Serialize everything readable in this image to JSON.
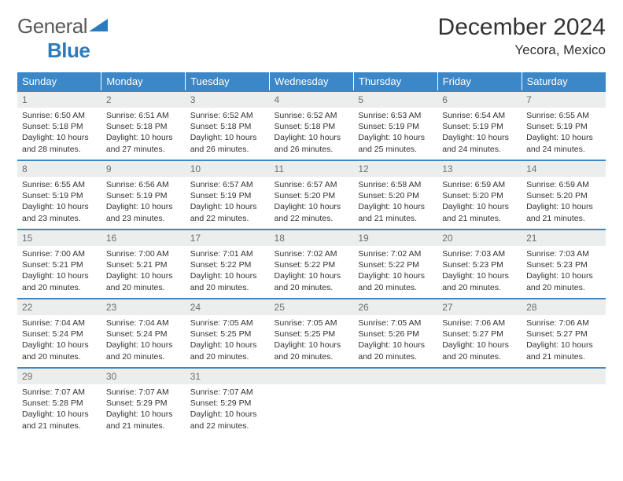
{
  "brand": {
    "part1": "General",
    "part2": "Blue"
  },
  "title": "December 2024",
  "location": "Yecora, Mexico",
  "colors": {
    "header_bg": "#3b87c8",
    "header_text": "#ffffff",
    "daynum_bg": "#eceded",
    "daynum_text": "#6e6e6e",
    "border": "#3b87c8",
    "logo_gray": "#5a5a5a",
    "logo_blue": "#2b7bbf"
  },
  "weekdays": [
    "Sunday",
    "Monday",
    "Tuesday",
    "Wednesday",
    "Thursday",
    "Friday",
    "Saturday"
  ],
  "days": [
    {
      "n": 1,
      "sunrise": "6:50 AM",
      "sunset": "5:18 PM",
      "dl": "10 hours and 28 minutes."
    },
    {
      "n": 2,
      "sunrise": "6:51 AM",
      "sunset": "5:18 PM",
      "dl": "10 hours and 27 minutes."
    },
    {
      "n": 3,
      "sunrise": "6:52 AM",
      "sunset": "5:18 PM",
      "dl": "10 hours and 26 minutes."
    },
    {
      "n": 4,
      "sunrise": "6:52 AM",
      "sunset": "5:18 PM",
      "dl": "10 hours and 26 minutes."
    },
    {
      "n": 5,
      "sunrise": "6:53 AM",
      "sunset": "5:19 PM",
      "dl": "10 hours and 25 minutes."
    },
    {
      "n": 6,
      "sunrise": "6:54 AM",
      "sunset": "5:19 PM",
      "dl": "10 hours and 24 minutes."
    },
    {
      "n": 7,
      "sunrise": "6:55 AM",
      "sunset": "5:19 PM",
      "dl": "10 hours and 24 minutes."
    },
    {
      "n": 8,
      "sunrise": "6:55 AM",
      "sunset": "5:19 PM",
      "dl": "10 hours and 23 minutes."
    },
    {
      "n": 9,
      "sunrise": "6:56 AM",
      "sunset": "5:19 PM",
      "dl": "10 hours and 23 minutes."
    },
    {
      "n": 10,
      "sunrise": "6:57 AM",
      "sunset": "5:19 PM",
      "dl": "10 hours and 22 minutes."
    },
    {
      "n": 11,
      "sunrise": "6:57 AM",
      "sunset": "5:20 PM",
      "dl": "10 hours and 22 minutes."
    },
    {
      "n": 12,
      "sunrise": "6:58 AM",
      "sunset": "5:20 PM",
      "dl": "10 hours and 21 minutes."
    },
    {
      "n": 13,
      "sunrise": "6:59 AM",
      "sunset": "5:20 PM",
      "dl": "10 hours and 21 minutes."
    },
    {
      "n": 14,
      "sunrise": "6:59 AM",
      "sunset": "5:20 PM",
      "dl": "10 hours and 21 minutes."
    },
    {
      "n": 15,
      "sunrise": "7:00 AM",
      "sunset": "5:21 PM",
      "dl": "10 hours and 20 minutes."
    },
    {
      "n": 16,
      "sunrise": "7:00 AM",
      "sunset": "5:21 PM",
      "dl": "10 hours and 20 minutes."
    },
    {
      "n": 17,
      "sunrise": "7:01 AM",
      "sunset": "5:22 PM",
      "dl": "10 hours and 20 minutes."
    },
    {
      "n": 18,
      "sunrise": "7:02 AM",
      "sunset": "5:22 PM",
      "dl": "10 hours and 20 minutes."
    },
    {
      "n": 19,
      "sunrise": "7:02 AM",
      "sunset": "5:22 PM",
      "dl": "10 hours and 20 minutes."
    },
    {
      "n": 20,
      "sunrise": "7:03 AM",
      "sunset": "5:23 PM",
      "dl": "10 hours and 20 minutes."
    },
    {
      "n": 21,
      "sunrise": "7:03 AM",
      "sunset": "5:23 PM",
      "dl": "10 hours and 20 minutes."
    },
    {
      "n": 22,
      "sunrise": "7:04 AM",
      "sunset": "5:24 PM",
      "dl": "10 hours and 20 minutes."
    },
    {
      "n": 23,
      "sunrise": "7:04 AM",
      "sunset": "5:24 PM",
      "dl": "10 hours and 20 minutes."
    },
    {
      "n": 24,
      "sunrise": "7:05 AM",
      "sunset": "5:25 PM",
      "dl": "10 hours and 20 minutes."
    },
    {
      "n": 25,
      "sunrise": "7:05 AM",
      "sunset": "5:25 PM",
      "dl": "10 hours and 20 minutes."
    },
    {
      "n": 26,
      "sunrise": "7:05 AM",
      "sunset": "5:26 PM",
      "dl": "10 hours and 20 minutes."
    },
    {
      "n": 27,
      "sunrise": "7:06 AM",
      "sunset": "5:27 PM",
      "dl": "10 hours and 20 minutes."
    },
    {
      "n": 28,
      "sunrise": "7:06 AM",
      "sunset": "5:27 PM",
      "dl": "10 hours and 21 minutes."
    },
    {
      "n": 29,
      "sunrise": "7:07 AM",
      "sunset": "5:28 PM",
      "dl": "10 hours and 21 minutes."
    },
    {
      "n": 30,
      "sunrise": "7:07 AM",
      "sunset": "5:29 PM",
      "dl": "10 hours and 21 minutes."
    },
    {
      "n": 31,
      "sunrise": "7:07 AM",
      "sunset": "5:29 PM",
      "dl": "10 hours and 22 minutes."
    }
  ],
  "labels": {
    "sunrise": "Sunrise:",
    "sunset": "Sunset:",
    "daylight": "Daylight:"
  }
}
